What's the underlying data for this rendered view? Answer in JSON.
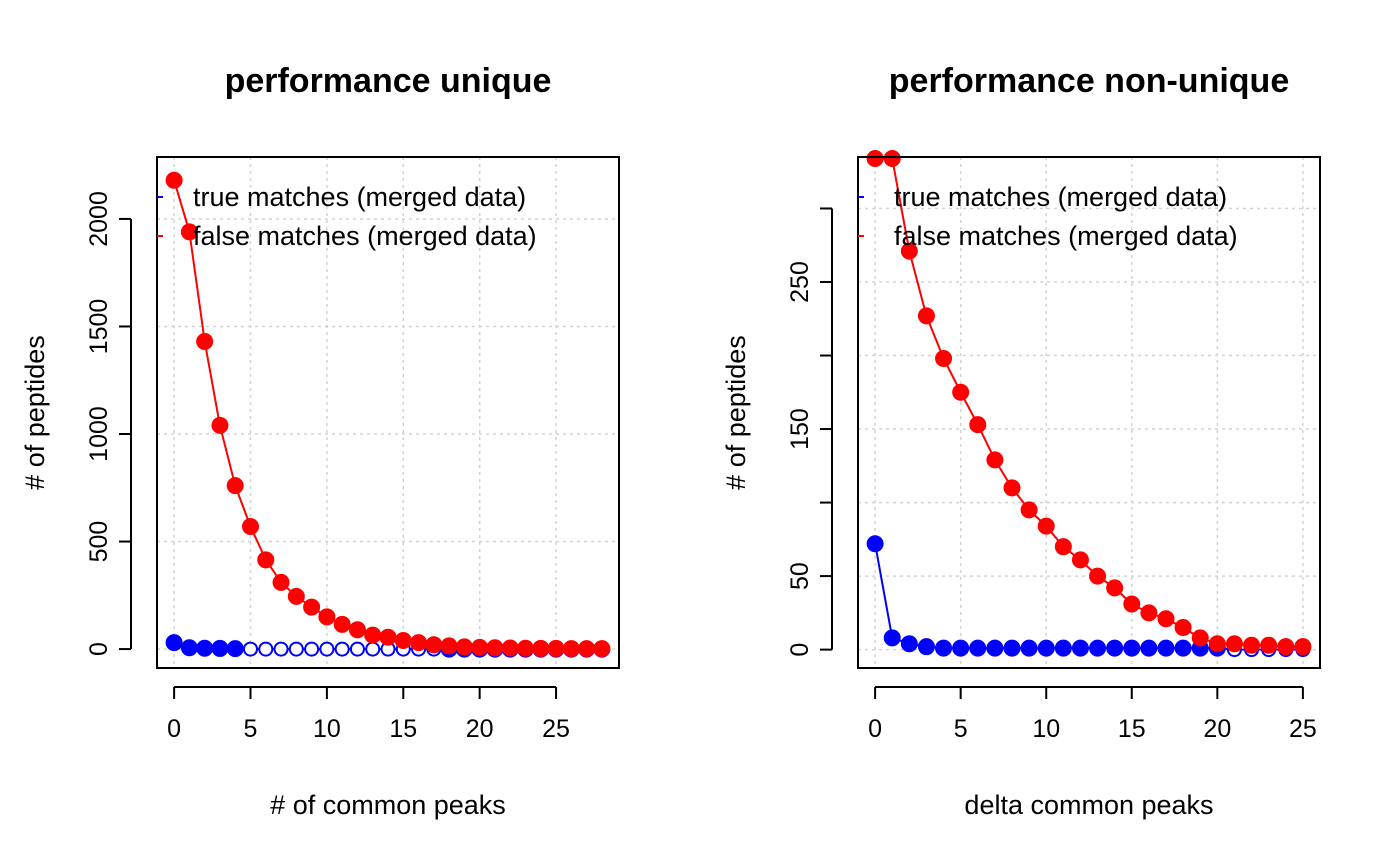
{
  "chart_data": [
    {
      "type": "scatter",
      "title": "performance unique",
      "xlabel": "# of common peaks",
      "ylabel": "# of peptides",
      "xlim": [
        -1.12,
        29.12
      ],
      "ylim": [
        -88,
        2288
      ],
      "xticks": [
        0,
        5,
        10,
        15,
        20,
        25
      ],
      "yticks": [
        0,
        500,
        1000,
        1500,
        2000
      ],
      "grid": true,
      "legend": {
        "position": "top-right",
        "entries": [
          {
            "label": "true matches (merged data)",
            "color": "#0000ff"
          },
          {
            "label": "false matches (merged data)",
            "color": "#ff0000"
          }
        ]
      },
      "series": [
        {
          "name": "true matches (merged data)",
          "color": "#0000ff",
          "x": [
            0,
            1,
            2,
            3,
            4,
            5,
            6,
            7,
            8,
            9,
            10,
            11,
            12,
            13,
            14,
            15,
            16,
            17,
            18,
            19,
            20,
            21,
            22,
            23,
            24,
            25,
            26,
            27,
            28
          ],
          "y": [
            30,
            6,
            4,
            3,
            2,
            0,
            0,
            0,
            0,
            0,
            0,
            0,
            0,
            0,
            0,
            0,
            0,
            0,
            0,
            0,
            0,
            0,
            0,
            0,
            0,
            0,
            0,
            0,
            0
          ],
          "filled": [
            true,
            true,
            true,
            true,
            true,
            false,
            false,
            false,
            false,
            false,
            false,
            false,
            false,
            false,
            false,
            false,
            false,
            false,
            true,
            true,
            true,
            true,
            true,
            true,
            true,
            true,
            true,
            true,
            true
          ]
        },
        {
          "name": "false matches (merged data)",
          "color": "#ff0000",
          "x": [
            0,
            1,
            2,
            3,
            4,
            5,
            6,
            7,
            8,
            9,
            10,
            11,
            12,
            13,
            14,
            15,
            16,
            17,
            18,
            19,
            20,
            21,
            22,
            23,
            24,
            25,
            26,
            27,
            28
          ],
          "y": [
            2180,
            1940,
            1430,
            1040,
            760,
            570,
            415,
            310,
            245,
            195,
            150,
            115,
            90,
            65,
            55,
            40,
            30,
            20,
            15,
            10,
            8,
            6,
            5,
            4,
            3,
            3,
            2,
            2,
            2
          ]
        }
      ]
    },
    {
      "type": "scatter",
      "title": "performance non-unique",
      "xlabel": "delta common peaks",
      "ylabel": "# of peptides",
      "xlim": [
        -1,
        26
      ],
      "ylim": [
        -12.5,
        335
      ],
      "xticks": [
        0,
        5,
        10,
        15,
        20,
        25
      ],
      "yticks": [
        0,
        50,
        150,
        250
      ],
      "ytick_marks": [
        0,
        50,
        100,
        150,
        200,
        250,
        300
      ],
      "grid": true,
      "legend": {
        "position": "top-right",
        "entries": [
          {
            "label": "true matches (merged data)",
            "color": "#0000ff"
          },
          {
            "label": "false matches (merged data)",
            "color": "#ff0000"
          }
        ]
      },
      "series": [
        {
          "name": "true matches (merged data)",
          "color": "#0000ff",
          "x": [
            0,
            1,
            2,
            3,
            4,
            5,
            6,
            7,
            8,
            9,
            10,
            11,
            12,
            13,
            14,
            15,
            16,
            17,
            18,
            19,
            20,
            21,
            22,
            23,
            24,
            25
          ],
          "y": [
            72,
            8,
            4,
            2,
            1,
            1,
            1,
            1,
            1,
            1,
            1,
            1,
            1,
            1,
            1,
            1,
            1,
            1,
            1,
            1,
            1,
            0,
            0,
            0,
            0,
            0
          ],
          "filled": [
            true,
            true,
            true,
            true,
            true,
            true,
            true,
            true,
            true,
            true,
            true,
            true,
            true,
            true,
            true,
            true,
            true,
            true,
            true,
            true,
            true,
            false,
            false,
            false,
            false,
            false
          ]
        },
        {
          "name": "false matches (merged data)",
          "color": "#ff0000",
          "x": [
            0,
            1,
            2,
            3,
            4,
            5,
            6,
            7,
            8,
            9,
            10,
            11,
            12,
            13,
            14,
            15,
            16,
            17,
            18,
            19,
            20,
            21,
            22,
            23,
            24,
            25
          ],
          "y": [
            334,
            334,
            271,
            227,
            198,
            175,
            153,
            129,
            110,
            95,
            84,
            70,
            61,
            50,
            42,
            31,
            25,
            21,
            15,
            8,
            4,
            4,
            3,
            3,
            2,
            2
          ]
        }
      ]
    }
  ]
}
